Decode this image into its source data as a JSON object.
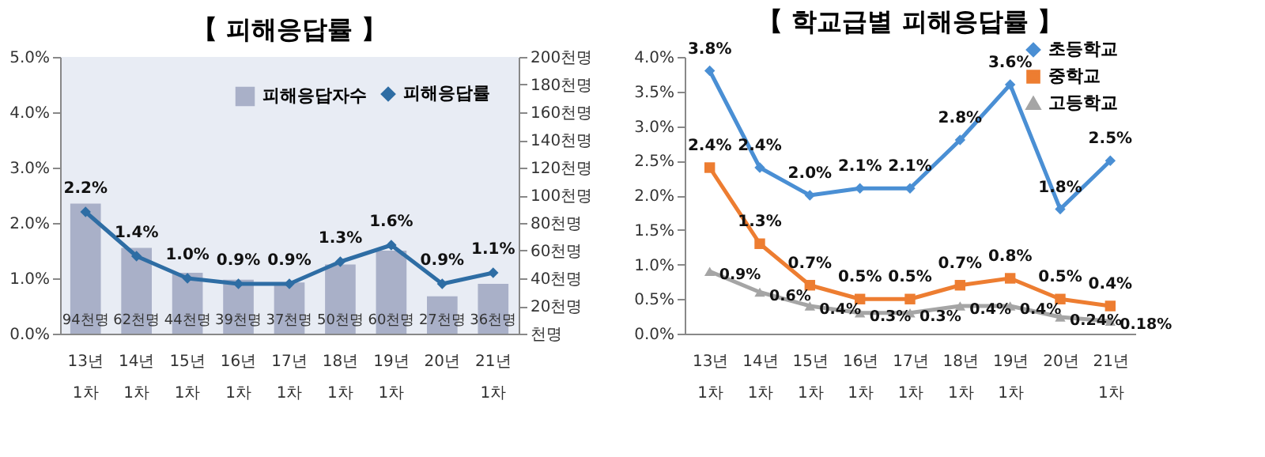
{
  "chart_data": [
    {
      "type": "bar",
      "title": "【 피해응답률 】",
      "categories": [
        "13년\n1차",
        "14년\n1차",
        "15년\n1차",
        "16년\n1차",
        "17년\n1차",
        "18년\n1차",
        "19년\n1차",
        "20년",
        "21년\n1차"
      ],
      "series": [
        {
          "name": "피해응답자수",
          "type": "bar",
          "axis": "y2",
          "color": "#a9b0c8",
          "values": [
            94,
            62,
            44,
            39,
            37,
            50,
            60,
            27,
            36
          ],
          "value_labels": [
            "94천명",
            "62천명",
            "44천명",
            "39천명",
            "37천명",
            "50천명",
            "60천명",
            "27천명",
            "36천명"
          ]
        },
        {
          "name": "피해응답률",
          "type": "line",
          "axis": "y",
          "color": "#2e6da4",
          "marker": "diamond",
          "values": [
            2.2,
            1.4,
            1.0,
            0.9,
            0.9,
            1.3,
            1.6,
            0.9,
            1.1
          ],
          "value_labels": [
            "2.2%",
            "1.4%",
            "1.0%",
            "0.9%",
            "0.9%",
            "1.3%",
            "1.6%",
            "0.9%",
            "1.1%"
          ]
        }
      ],
      "ylim": [
        0,
        5
      ],
      "yticks": [
        {
          "value": 0,
          "label": "0.0%"
        },
        {
          "value": 1,
          "label": "1.0%"
        },
        {
          "value": 2,
          "label": "2.0%"
        },
        {
          "value": 3,
          "label": "3.0%"
        },
        {
          "value": 4,
          "label": "4.0%"
        },
        {
          "value": 5,
          "label": "5.0%"
        }
      ],
      "y2lim": [
        0,
        200
      ],
      "y2ticks": [
        {
          "value": 0,
          "label": "천명"
        },
        {
          "value": 20,
          "label": "20천명"
        },
        {
          "value": 40,
          "label": "40천명"
        },
        {
          "value": 60,
          "label": "60천명"
        },
        {
          "value": 80,
          "label": "80천명"
        },
        {
          "value": 100,
          "label": "100천명"
        },
        {
          "value": 120,
          "label": "120천명"
        },
        {
          "value": 140,
          "label": "140천명"
        },
        {
          "value": 160,
          "label": "160천명"
        },
        {
          "value": 180,
          "label": "180천명"
        },
        {
          "value": 200,
          "label": "200천명"
        }
      ],
      "legend": "top right"
    },
    {
      "type": "line",
      "title": "【 학교급별 피해응답률 】",
      "categories": [
        "13년\n1차",
        "14년\n1차",
        "15년\n1차",
        "16년\n1차",
        "17년\n1차",
        "18년\n1차",
        "19년\n1차",
        "20년",
        "21년\n1차"
      ],
      "series": [
        {
          "name": "초등학교",
          "color": "#4a8fd4",
          "marker": "diamond",
          "values": [
            3.8,
            2.4,
            2.0,
            2.1,
            2.1,
            2.8,
            3.6,
            1.8,
            2.5
          ],
          "value_labels": [
            "3.8%",
            "2.4%",
            "2.0%",
            "2.1%",
            "2.1%",
            "2.8%",
            "3.6%",
            "1.8%",
            "2.5%"
          ]
        },
        {
          "name": "중학교",
          "color": "#ed7d31",
          "marker": "square",
          "values": [
            2.4,
            1.3,
            0.7,
            0.5,
            0.5,
            0.7,
            0.8,
            0.5,
            0.4
          ],
          "value_labels": [
            "2.4%",
            "1.3%",
            "0.7%",
            "0.5%",
            "0.5%",
            "0.7%",
            "0.8%",
            "0.5%",
            "0.4%"
          ]
        },
        {
          "name": "고등학교",
          "color": "#a5a5a5",
          "marker": "triangle",
          "values": [
            0.9,
            0.6,
            0.4,
            0.3,
            0.3,
            0.4,
            0.4,
            0.24,
            0.18
          ],
          "value_labels": [
            "0.9%",
            "0.6%",
            "0.4%",
            "0.3%",
            "0.3%",
            "0.4%",
            "0.4%",
            "0.24%",
            "0.18%"
          ]
        }
      ],
      "ylim": [
        0,
        4
      ],
      "yticks": [
        {
          "value": 0,
          "label": "0.0%"
        },
        {
          "value": 0.5,
          "label": "0.5%"
        },
        {
          "value": 1,
          "label": "1.0%"
        },
        {
          "value": 1.5,
          "label": "1.5%"
        },
        {
          "value": 2,
          "label": "2.0%"
        },
        {
          "value": 2.5,
          "label": "2.5%"
        },
        {
          "value": 3,
          "label": "3.0%"
        },
        {
          "value": 3.5,
          "label": "3.5%"
        },
        {
          "value": 4,
          "label": "4.0%"
        }
      ],
      "legend": "top right"
    }
  ]
}
